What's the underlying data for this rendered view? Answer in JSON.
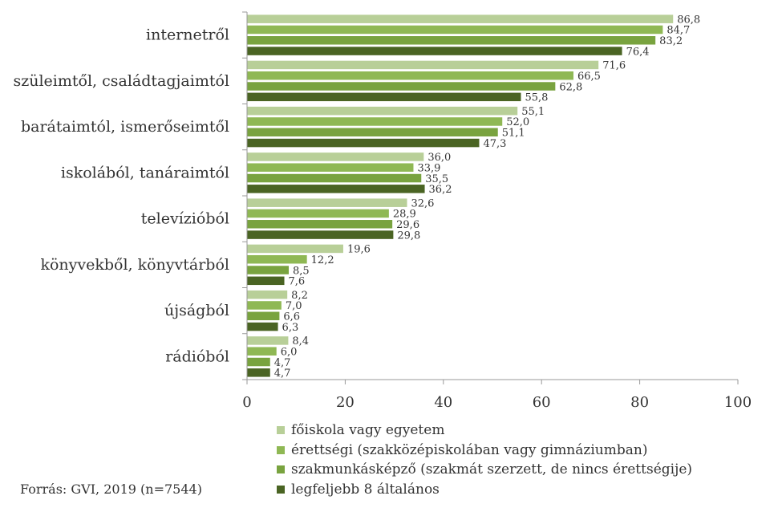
{
  "chart_data": {
    "type": "bar",
    "orientation": "horizontal",
    "categories": [
      "internetről",
      "szüleimtől, családtagjaimtól",
      "barátaimtól, ismerőseimtől",
      "iskolából, tanáraimtól",
      "televízióból",
      "könyvekből, könyvtárból",
      "újságból",
      "rádióból"
    ],
    "series": [
      {
        "name": "főiskola vagy egyetem",
        "color": "#b8cf98",
        "values": [
          86.8,
          71.6,
          55.1,
          36.0,
          32.6,
          19.6,
          8.2,
          8.4
        ],
        "labels": [
          "86,8",
          "71,6",
          "55,1",
          "36,0",
          "32,6",
          "19,6",
          "8,2",
          "8,4"
        ]
      },
      {
        "name": "érettségi (szakközépiskolában vagy gimnáziumban)",
        "color": "#8fb854",
        "values": [
          84.7,
          66.5,
          52.0,
          33.9,
          28.9,
          12.2,
          7.0,
          6.0
        ],
        "labels": [
          "84,7",
          "66,5",
          "52,0",
          "33,9",
          "28,9",
          "12,2",
          "7,0",
          "6,0"
        ]
      },
      {
        "name": "szakmunkásképző (szakmát szerzett, de nincs érettségije)",
        "color": "#79a33f",
        "values": [
          83.2,
          62.8,
          51.1,
          35.5,
          29.6,
          8.5,
          6.6,
          4.7
        ],
        "labels": [
          "83,2",
          "62,8",
          "51,1",
          "35,5",
          "29,6",
          "8,5",
          "6,6",
          "4,7"
        ]
      },
      {
        "name": "legfeljebb 8 általános",
        "color": "#4a6423",
        "values": [
          76.4,
          55.8,
          47.3,
          36.2,
          29.8,
          7.6,
          6.3,
          4.7
        ],
        "labels": [
          "76,4",
          "55,8",
          "47,3",
          "36,2",
          "29,8",
          "7,6",
          "6,3",
          "4,7"
        ]
      }
    ],
    "xlim": [
      0,
      100
    ],
    "xticks": [
      0,
      20,
      40,
      60,
      80,
      100
    ],
    "grid": false,
    "legend_position": "bottom"
  },
  "source": "Forrás: GVI, 2019 (n=7544)"
}
